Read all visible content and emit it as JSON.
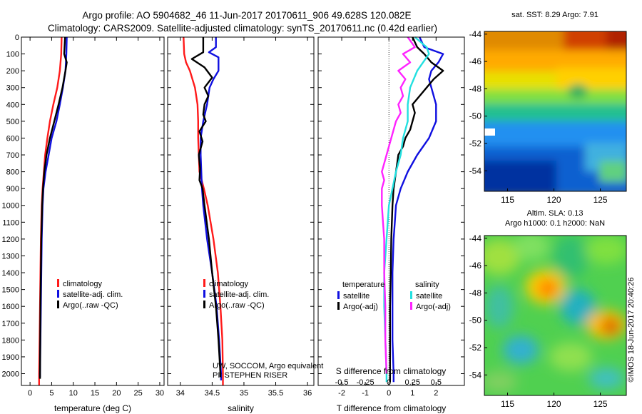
{
  "header": {
    "line1": "Argo profile: AO 5904682_46 11-Jun-2017 20170611_906 49.628S 120.082E",
    "line2": "Climatology: CARS2009. Satellite-adjusted climatology: synTS_20170611.nc (0.42d earlier)"
  },
  "colors": {
    "climatology": "#ff1a1a",
    "satellite": "#1010e0",
    "argo": "#000000",
    "argo_salinity_diff": "#ff22ff",
    "satellite_salinity_diff": "#22e0e0"
  },
  "chart_data": [
    {
      "type": "line",
      "panel": "temperature",
      "xlabel": "temperature (deg C)",
      "ylabel": "",
      "xlim": [
        -2,
        31
      ],
      "ylim": [
        2070,
        0
      ],
      "xticks": [
        0,
        5,
        10,
        15,
        20,
        25,
        30
      ],
      "yticks": [
        0,
        100,
        200,
        300,
        400,
        500,
        600,
        700,
        800,
        900,
        1000,
        1100,
        1200,
        1300,
        1400,
        1500,
        1600,
        1700,
        1800,
        1900,
        2000
      ],
      "legend": [
        "climatology",
        "satellite-adj. clim.",
        "Argo(..raw -QC)"
      ],
      "series": [
        {
          "name": "climatology",
          "depth": [
            0,
            100,
            200,
            300,
            400,
            500,
            600,
            700,
            800,
            900,
            1000,
            1200,
            1400,
            1600,
            1800,
            2000,
            2070
          ],
          "values": [
            7.3,
            7.2,
            6.9,
            6.3,
            5.4,
            4.6,
            4.0,
            3.5,
            3.2,
            2.9,
            2.7,
            2.5,
            2.4,
            2.3,
            2.2,
            2.1,
            2.1
          ]
        },
        {
          "name": "satellite-adj. clim.",
          "depth": [
            0,
            100,
            200,
            300,
            400,
            500,
            600,
            700,
            800,
            900,
            1000,
            1200,
            1400,
            1600,
            1800,
            2000,
            2020
          ],
          "values": [
            8.5,
            8.4,
            8.2,
            7.6,
            6.9,
            6.1,
            5.0,
            4.3,
            3.6,
            3.1,
            2.9,
            2.7,
            2.6,
            2.5,
            2.4,
            2.3,
            2.3
          ]
        },
        {
          "name": "Argo(..raw -QC)",
          "depth": [
            0,
            100,
            150,
            200,
            300,
            400,
            500,
            600,
            700,
            800,
            900,
            1000,
            1200,
            1400,
            1600,
            1800,
            2000,
            2030
          ],
          "values": [
            8.1,
            7.9,
            8.5,
            8.2,
            7.5,
            6.6,
            5.6,
            4.6,
            3.8,
            3.3,
            3.0,
            2.8,
            2.6,
            2.5,
            2.4,
            2.35,
            2.3,
            2.3
          ]
        }
      ]
    },
    {
      "type": "line",
      "panel": "salinity",
      "xlabel": "salinity",
      "ylabel": "",
      "xlim": [
        33.8,
        36.1
      ],
      "ylim": [
        2070,
        0
      ],
      "xticks": [
        34,
        34.5,
        35,
        35.5,
        36
      ],
      "legend": [
        "climatology",
        "satellite-adj. clim.",
        "Argo(..raw -QC)"
      ],
      "annotation": [
        "UW, SOCCOM, Argo equivalent",
        "PI: STEPHEN RISER"
      ],
      "series": [
        {
          "name": "climatology",
          "depth": [
            0,
            100,
            150,
            200,
            300,
            400,
            500,
            600,
            700,
            800,
            900,
            1000,
            1200,
            1400,
            1600,
            1800,
            2000,
            2070
          ],
          "values": [
            34.05,
            34.06,
            34.09,
            34.15,
            34.23,
            34.27,
            34.28,
            34.28,
            34.29,
            34.3,
            34.37,
            34.43,
            34.52,
            34.59,
            34.63,
            34.66,
            34.67,
            34.67
          ]
        },
        {
          "name": "satellite-adj. clim.",
          "depth": [
            0,
            60,
            90,
            120,
            200,
            250,
            300,
            400,
            500,
            600,
            700,
            800,
            900,
            1000,
            1200,
            1400,
            1600,
            1800,
            2000,
            2040
          ],
          "values": [
            34.56,
            34.56,
            34.45,
            34.6,
            34.6,
            34.52,
            34.46,
            34.42,
            34.36,
            34.32,
            34.32,
            34.33,
            34.34,
            34.36,
            34.42,
            34.5,
            34.57,
            34.61,
            34.64,
            34.64
          ]
        },
        {
          "name": "Argo(..raw -QC)",
          "depth": [
            0,
            90,
            130,
            180,
            240,
            300,
            350,
            400,
            460,
            500,
            560,
            620,
            700,
            780,
            850,
            900,
            1000,
            1200,
            1400,
            1600,
            1800,
            2000,
            2020
          ],
          "values": [
            34.36,
            34.36,
            34.18,
            34.38,
            34.5,
            34.38,
            34.44,
            34.38,
            34.36,
            34.4,
            34.3,
            34.35,
            34.29,
            34.31,
            34.3,
            34.35,
            34.38,
            34.45,
            34.5,
            34.56,
            34.6,
            34.63,
            34.63
          ]
        }
      ]
    },
    {
      "type": "line",
      "panel": "difference",
      "xlabel": "T difference from climatology",
      "x2label": "S difference from climatology",
      "xlim": [
        -3,
        3.2
      ],
      "ylim": [
        2070,
        0
      ],
      "xticks": [
        -2,
        -1,
        0,
        1,
        2
      ],
      "x2ticks": [
        -0.5,
        -0.25,
        0,
        0.25,
        0.5
      ],
      "legend_headers": [
        "temperature",
        "salinity"
      ],
      "legend": [
        "satellite",
        "Argo(-adj)",
        "satellite",
        "Argo(-adj)"
      ],
      "series": [
        {
          "name": "satellite",
          "variable": "temperature",
          "depth": [
            0,
            60,
            100,
            150,
            200,
            250,
            300,
            400,
            500,
            600,
            700,
            800,
            900,
            1000,
            1100,
            1200,
            1400,
            1600,
            1800,
            2000,
            2050
          ],
          "values": [
            1.3,
            1.5,
            2.3,
            2.1,
            1.8,
            1.7,
            1.8,
            2.0,
            2.0,
            1.7,
            1.2,
            0.8,
            0.5,
            0.3,
            0.25,
            0.2,
            0.15,
            0.15,
            0.15,
            0.2,
            0.2
          ]
        },
        {
          "name": "Argo(-adj)",
          "variable": "temperature",
          "depth": [
            0,
            60,
            100,
            150,
            200,
            250,
            300,
            350,
            400,
            450,
            500,
            550,
            600,
            650,
            700,
            750,
            800,
            850,
            900,
            1000,
            1200,
            1400,
            1600,
            1800,
            2000,
            2050
          ],
          "values": [
            1.0,
            1.2,
            1.5,
            1.8,
            2.3,
            1.9,
            1.6,
            1.3,
            1.0,
            1.1,
            1.0,
            0.9,
            0.7,
            0.6,
            0.4,
            0.35,
            0.3,
            0.25,
            0.2,
            0.15,
            0.1,
            0.08,
            0.05,
            0.05,
            0.05,
            0.05
          ]
        },
        {
          "name": "satellite",
          "variable": "salinity",
          "depth": [
            0,
            60,
            100,
            200,
            300,
            400,
            500,
            600,
            700,
            800,
            900,
            1000,
            1200,
            1400,
            1600,
            1800,
            2000,
            2050
          ],
          "values": [
            1.1,
            1.6,
            1.7,
            1.2,
            0.9,
            0.8,
            0.8,
            0.6,
            0.5,
            0.3,
            0.15,
            0.0,
            -0.1,
            -0.2,
            -0.2,
            -0.15,
            -0.1,
            -0.1
          ]
        },
        {
          "name": "Argo(-adj)",
          "variable": "salinity",
          "depth": [
            0,
            60,
            100,
            150,
            200,
            250,
            300,
            350,
            400,
            450,
            500,
            550,
            600,
            650,
            700,
            750,
            800,
            850,
            900,
            1000,
            1100,
            1200,
            1400,
            1600,
            1800,
            2000
          ],
          "values": [
            0.8,
            1.1,
            0.6,
            0.9,
            0.4,
            0.7,
            0.5,
            0.6,
            0.4,
            0.5,
            0.3,
            0.2,
            0.1,
            0.0,
            -0.1,
            -0.2,
            -0.3,
            -0.2,
            -0.3,
            -0.3,
            -0.25,
            -0.2,
            -0.2,
            -0.15,
            -0.15,
            -0.1
          ]
        }
      ]
    },
    {
      "type": "heatmap",
      "panel": "sst",
      "title": "sat. SST: 8.29 Argo: 7.91",
      "xlim": [
        112.5,
        127.8
      ],
      "ylim": [
        -55.5,
        -43.8
      ],
      "xticks": [
        115,
        120,
        125
      ],
      "yticks": [
        -44,
        -46,
        -48,
        -50,
        -52,
        -54
      ]
    },
    {
      "type": "heatmap",
      "panel": "sla",
      "title": [
        "Altim. SLA: 0.13",
        "Argo h1000: 0.1 h2000: NaN"
      ],
      "xlim": [
        112.5,
        127.8
      ],
      "ylim": [
        -55.5,
        -43.8
      ],
      "xticks": [
        115,
        120,
        125
      ],
      "yticks": [
        -44,
        -46,
        -48,
        -50,
        -52,
        -54
      ],
      "side_label": "©IMOS 18-Jun-2017 20:40:26"
    }
  ]
}
